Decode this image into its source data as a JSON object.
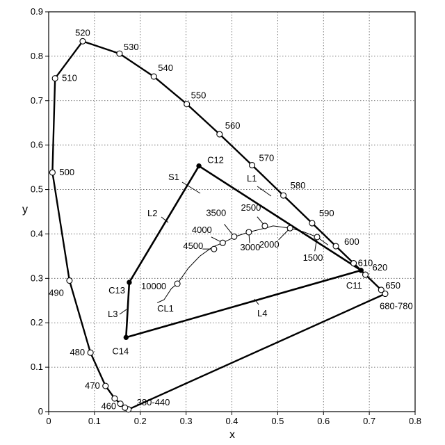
{
  "chart_data": {
    "type": "line",
    "xlabel": "x",
    "ylabel": "y",
    "xlim": [
      0,
      0.8
    ],
    "ylim": [
      0,
      0.9
    ],
    "x_ticks": [
      "0",
      "0.1",
      "0.2",
      "0.3",
      "0.4",
      "0.5",
      "0.6",
      "0.7",
      "0.8"
    ],
    "y_ticks": [
      "0",
      "0.1",
      "0.2",
      "0.3",
      "0.4",
      "0.5",
      "0.6",
      "0.7",
      "0.8",
      "0.9"
    ],
    "grid": true,
    "spectral_locus": [
      [
        0.1741,
        0.005
      ],
      [
        0.1666,
        0.0089
      ],
      [
        0.1566,
        0.0177
      ],
      [
        0.144,
        0.0297
      ],
      [
        0.1241,
        0.0578
      ],
      [
        0.0913,
        0.1327
      ],
      [
        0.0454,
        0.295
      ],
      [
        0.0082,
        0.5384
      ],
      [
        0.0139,
        0.7502
      ],
      [
        0.0743,
        0.8338
      ],
      [
        0.1547,
        0.8059
      ],
      [
        0.2296,
        0.7543
      ],
      [
        0.3016,
        0.6923
      ],
      [
        0.3731,
        0.6245
      ],
      [
        0.4441,
        0.5547
      ],
      [
        0.5125,
        0.4866
      ],
      [
        0.5752,
        0.4242
      ],
      [
        0.627,
        0.3725
      ],
      [
        0.6658,
        0.334
      ],
      [
        0.6915,
        0.3083
      ],
      [
        0.7079,
        0.292
      ],
      [
        0.7347,
        0.2653
      ]
    ],
    "wavelength_points": [
      {
        "label": "380-440",
        "x": 0.1741,
        "y": 0.005
      },
      {
        "label": "",
        "x": 0.1666,
        "y": 0.0089
      },
      {
        "label": "460",
        "x": 0.1566,
        "y": 0.0177
      },
      {
        "label": "",
        "x": 0.144,
        "y": 0.0297
      },
      {
        "label": "470",
        "x": 0.1241,
        "y": 0.0578
      },
      {
        "label": "480",
        "x": 0.0913,
        "y": 0.1327
      },
      {
        "label": "490",
        "x": 0.0454,
        "y": 0.295
      },
      {
        "label": "500",
        "x": 0.0082,
        "y": 0.5384
      },
      {
        "label": "510",
        "x": 0.0139,
        "y": 0.7502
      },
      {
        "label": "520",
        "x": 0.0743,
        "y": 0.8338
      },
      {
        "label": "530",
        "x": 0.1547,
        "y": 0.8059
      },
      {
        "label": "540",
        "x": 0.2296,
        "y": 0.7543
      },
      {
        "label": "550",
        "x": 0.3016,
        "y": 0.6923
      },
      {
        "label": "560",
        "x": 0.3731,
        "y": 0.6245
      },
      {
        "label": "570",
        "x": 0.4441,
        "y": 0.5547
      },
      {
        "label": "580",
        "x": 0.5125,
        "y": 0.4866
      },
      {
        "label": "590",
        "x": 0.5752,
        "y": 0.4242
      },
      {
        "label": "600",
        "x": 0.627,
        "y": 0.3725
      },
      {
        "label": "610",
        "x": 0.6658,
        "y": 0.334
      },
      {
        "label": "620",
        "x": 0.6915,
        "y": 0.3083
      },
      {
        "label": "650",
        "x": 0.726,
        "y": 0.274
      },
      {
        "label": "680-780",
        "x": 0.7347,
        "y": 0.2653
      }
    ],
    "planckian_locus": [
      [
        0.252,
        0.252
      ],
      [
        0.268,
        0.277
      ],
      [
        0.281,
        0.288
      ],
      [
        0.305,
        0.323
      ],
      [
        0.33,
        0.35
      ],
      [
        0.357,
        0.37
      ],
      [
        0.38,
        0.38
      ],
      [
        0.41,
        0.395
      ],
      [
        0.437,
        0.404
      ],
      [
        0.476,
        0.414
      ],
      [
        0.49,
        0.418
      ],
      [
        0.527,
        0.413
      ],
      [
        0.556,
        0.405
      ],
      [
        0.586,
        0.393
      ],
      [
        0.61,
        0.375
      ]
    ],
    "cct_points": [
      {
        "label": "10000",
        "x": 0.281,
        "y": 0.288
      },
      {
        "label": "4500",
        "x": 0.361,
        "y": 0.366
      },
      {
        "label": "4000",
        "x": 0.38,
        "y": 0.38
      },
      {
        "label": "3500",
        "x": 0.405,
        "y": 0.394
      },
      {
        "label": "3000",
        "x": 0.437,
        "y": 0.404
      },
      {
        "label": "2500",
        "x": 0.472,
        "y": 0.418
      },
      {
        "label": "2000",
        "x": 0.527,
        "y": 0.413
      },
      {
        "label": "1500",
        "x": 0.586,
        "y": 0.393
      }
    ],
    "polygon": [
      {
        "label": "C12",
        "x": 0.328,
        "y": 0.553
      },
      {
        "label": "C11",
        "x": 0.682,
        "y": 0.318
      },
      {
        "label": "C14",
        "x": 0.169,
        "y": 0.167
      },
      {
        "label": "C13",
        "x": 0.176,
        "y": 0.291
      }
    ],
    "line_labels": [
      "L1",
      "L2",
      "L3",
      "L4",
      "S1",
      "CL1"
    ]
  }
}
